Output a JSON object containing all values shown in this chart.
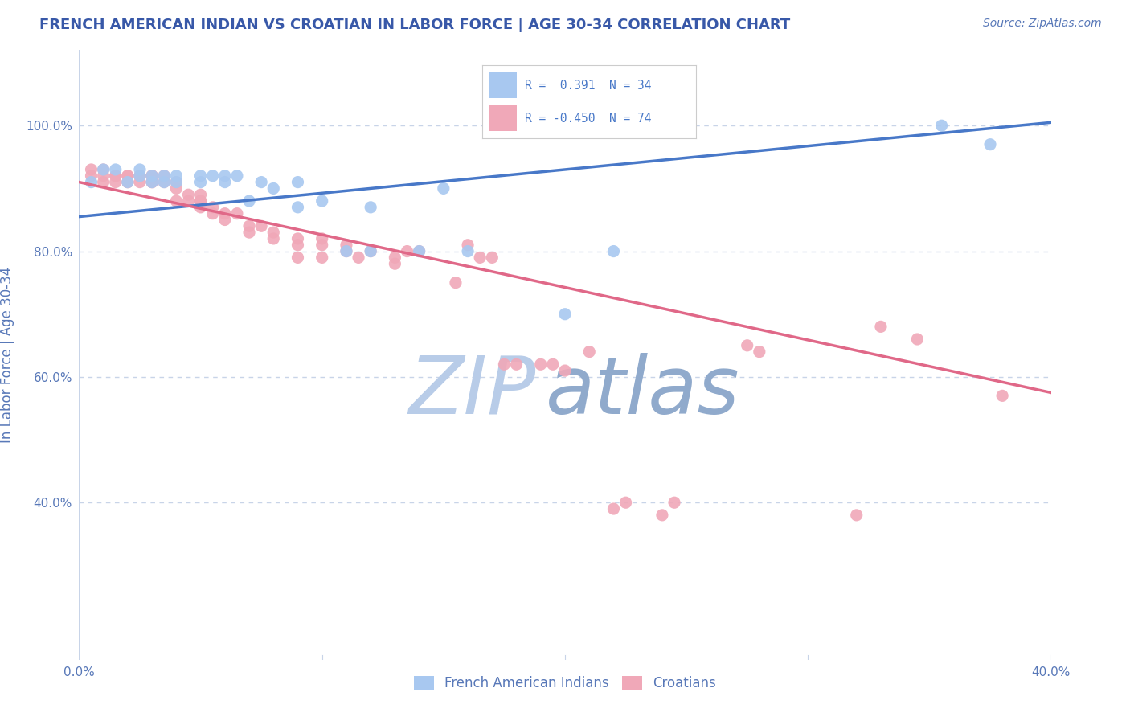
{
  "title": "FRENCH AMERICAN INDIAN VS CROATIAN IN LABOR FORCE | AGE 30-34 CORRELATION CHART",
  "source": "Source: ZipAtlas.com",
  "xlabel": "",
  "ylabel": "In Labor Force | Age 30-34",
  "xlim": [
    0.0,
    0.4
  ],
  "ylim": [
    0.15,
    1.12
  ],
  "ytick_vals": [
    0.4,
    0.6,
    0.8,
    1.0
  ],
  "ytick_labels": [
    "40.0%",
    "60.0%",
    "80.0%",
    "100.0%"
  ],
  "xtick_vals": [
    0.0,
    0.1,
    0.2,
    0.3,
    0.4
  ],
  "xtick_labels": [
    "0.0%",
    "",
    "",
    "",
    "40.0%"
  ],
  "blue_r": 0.391,
  "blue_n": 34,
  "pink_r": -0.45,
  "pink_n": 74,
  "blue_color": "#A8C8F0",
  "pink_color": "#F0A8B8",
  "blue_line_color": "#4878C8",
  "pink_line_color": "#E06888",
  "watermark_zip_color": "#B8CCE8",
  "watermark_atlas_color": "#90AACC",
  "title_color": "#3858A8",
  "axis_color": "#5878B8",
  "grid_color": "#C8D4E8",
  "blue_scatter_x": [
    0.005,
    0.01,
    0.015,
    0.02,
    0.025,
    0.025,
    0.03,
    0.03,
    0.035,
    0.035,
    0.04,
    0.04,
    0.05,
    0.05,
    0.055,
    0.06,
    0.06,
    0.065,
    0.07,
    0.075,
    0.08,
    0.09,
    0.09,
    0.1,
    0.11,
    0.12,
    0.12,
    0.14,
    0.15,
    0.16,
    0.2,
    0.22,
    0.355,
    0.375
  ],
  "blue_scatter_y": [
    0.91,
    0.93,
    0.93,
    0.91,
    0.93,
    0.92,
    0.91,
    0.92,
    0.91,
    0.92,
    0.91,
    0.92,
    0.91,
    0.92,
    0.92,
    0.92,
    0.91,
    0.92,
    0.88,
    0.91,
    0.9,
    0.87,
    0.91,
    0.88,
    0.8,
    0.87,
    0.8,
    0.8,
    0.9,
    0.8,
    0.7,
    0.8,
    1.0,
    0.97
  ],
  "pink_scatter_x": [
    0.005,
    0.005,
    0.01,
    0.01,
    0.01,
    0.015,
    0.015,
    0.015,
    0.02,
    0.02,
    0.02,
    0.02,
    0.025,
    0.025,
    0.025,
    0.03,
    0.03,
    0.03,
    0.03,
    0.035,
    0.035,
    0.04,
    0.04,
    0.04,
    0.045,
    0.045,
    0.05,
    0.05,
    0.05,
    0.05,
    0.055,
    0.055,
    0.06,
    0.06,
    0.065,
    0.07,
    0.07,
    0.075,
    0.08,
    0.08,
    0.09,
    0.09,
    0.09,
    0.1,
    0.1,
    0.1,
    0.11,
    0.11,
    0.115,
    0.12,
    0.13,
    0.13,
    0.135,
    0.14,
    0.155,
    0.16,
    0.165,
    0.17,
    0.175,
    0.18,
    0.19,
    0.195,
    0.2,
    0.21,
    0.22,
    0.225,
    0.24,
    0.245,
    0.275,
    0.28,
    0.32,
    0.33,
    0.345,
    0.38
  ],
  "pink_scatter_y": [
    0.93,
    0.92,
    0.92,
    0.91,
    0.93,
    0.92,
    0.91,
    0.92,
    0.92,
    0.91,
    0.92,
    0.91,
    0.92,
    0.91,
    0.92,
    0.91,
    0.92,
    0.91,
    0.92,
    0.91,
    0.92,
    0.91,
    0.88,
    0.9,
    0.88,
    0.89,
    0.88,
    0.87,
    0.88,
    0.89,
    0.86,
    0.87,
    0.85,
    0.86,
    0.86,
    0.84,
    0.83,
    0.84,
    0.83,
    0.82,
    0.82,
    0.81,
    0.79,
    0.82,
    0.81,
    0.79,
    0.81,
    0.8,
    0.79,
    0.8,
    0.79,
    0.78,
    0.8,
    0.8,
    0.75,
    0.81,
    0.79,
    0.79,
    0.62,
    0.62,
    0.62,
    0.62,
    0.61,
    0.64,
    0.39,
    0.4,
    0.38,
    0.4,
    0.65,
    0.64,
    0.38,
    0.68,
    0.66,
    0.57
  ],
  "blue_trend_x": [
    0.0,
    0.4
  ],
  "blue_trend_y": [
    0.855,
    1.005
  ],
  "pink_trend_x": [
    0.0,
    0.4
  ],
  "pink_trend_y": [
    0.91,
    0.575
  ]
}
